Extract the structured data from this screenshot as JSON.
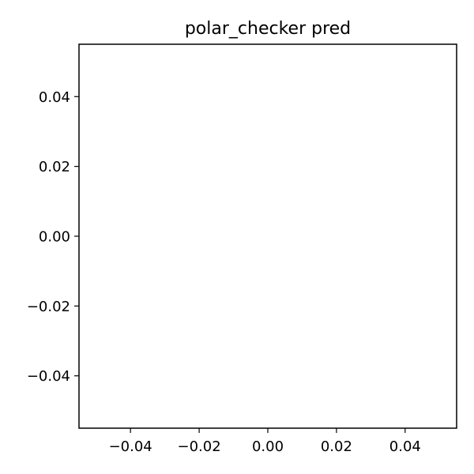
{
  "chart_data": {
    "type": "scatter",
    "title": "polar_checker pred",
    "xlabel": "",
    "ylabel": "",
    "xlim": [
      -0.055,
      0.055
    ],
    "ylim": [
      -0.055,
      0.055
    ],
    "xticks": [
      -0.04,
      -0.02,
      0.0,
      0.02,
      0.04
    ],
    "yticks": [
      -0.04,
      -0.02,
      0.0,
      0.02,
      0.04
    ],
    "xtick_labels": [
      "−0.04",
      "−0.02",
      "0.00",
      "0.02",
      "0.04"
    ],
    "ytick_labels": [
      "−0.04",
      "−0.02",
      "0.00",
      "0.02",
      "0.04"
    ],
    "series": [],
    "grid": false,
    "legend": "none"
  }
}
